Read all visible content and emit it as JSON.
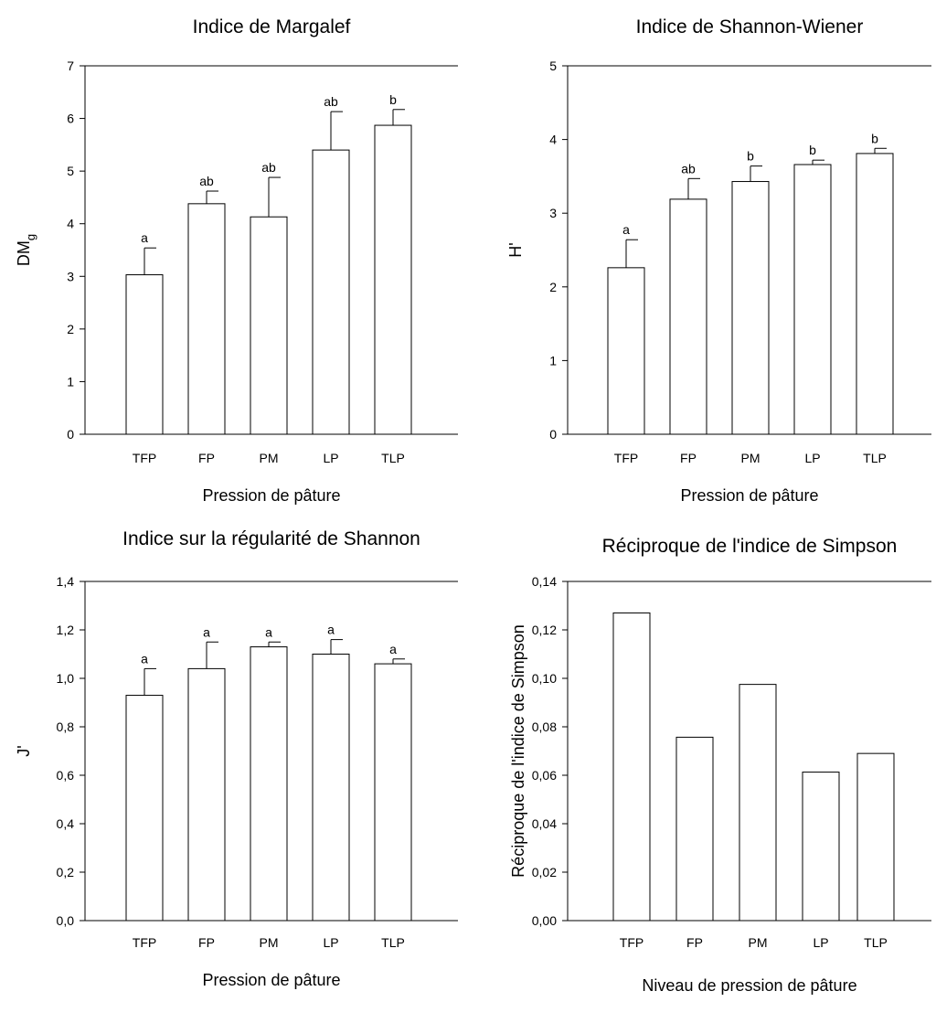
{
  "chart_data": [
    {
      "type": "bar",
      "title": "Indice de Margalef",
      "xlabel": "Pression de pâture",
      "ylabel_main": "DM",
      "ylabel_sub": "g",
      "categories": [
        "TFP",
        "FP",
        "PM",
        "LP",
        "TLP"
      ],
      "values": [
        3.03,
        4.38,
        4.13,
        5.4,
        5.87
      ],
      "errors": [
        0.51,
        0.24,
        0.75,
        0.73,
        0.3
      ],
      "letters": [
        "a",
        "ab",
        "ab",
        "ab",
        "b"
      ],
      "ylim": [
        0,
        7
      ],
      "yticks": [
        "0",
        "1",
        "2",
        "3",
        "4",
        "5",
        "6",
        "7"
      ]
    },
    {
      "type": "bar",
      "title": "Indice de Shannon-Wiener",
      "xlabel": "Pression de pâture",
      "ylabel": "H'",
      "categories": [
        "TFP",
        "FP",
        "PM",
        "LP",
        "TLP"
      ],
      "values": [
        2.26,
        3.19,
        3.43,
        3.66,
        3.81
      ],
      "errors": [
        0.38,
        0.28,
        0.21,
        0.06,
        0.07
      ],
      "letters": [
        "a",
        "ab",
        "b",
        "b",
        "b"
      ],
      "ylim": [
        0,
        5
      ],
      "yticks": [
        "0",
        "1",
        "2",
        "3",
        "4",
        "5"
      ]
    },
    {
      "type": "bar",
      "title": "Indice sur la régularité de Shannon",
      "xlabel": "Pression de pâture",
      "ylabel": "J'",
      "categories": [
        "TFP",
        "FP",
        "PM",
        "LP",
        "TLP"
      ],
      "values": [
        0.93,
        1.04,
        1.13,
        1.1,
        1.06
      ],
      "errors": [
        0.11,
        0.11,
        0.02,
        0.06,
        0.02
      ],
      "letters": [
        "a",
        "a",
        "a",
        "a",
        "a"
      ],
      "ylim": [
        0,
        1.4
      ],
      "yticks": [
        "0,0",
        "0,2",
        "0,4",
        "0,6",
        "0,8",
        "1,0",
        "1,2",
        "1,4"
      ]
    },
    {
      "type": "bar",
      "title": "Réciproque de l'indice de Simpson",
      "xlabel": "Niveau de pression de pâture",
      "ylabel": "Réciproque de l'indice de Simpson",
      "categories": [
        "TFP",
        "FP",
        "PM",
        "LP",
        "TLP"
      ],
      "values": [
        0.127,
        0.0757,
        0.0975,
        0.0613,
        0.069
      ],
      "ylim": [
        0,
        0.14
      ],
      "yticks": [
        "0,00",
        "0,02",
        "0,04",
        "0,06",
        "0,08",
        "0,10",
        "0,12",
        "0,14"
      ]
    }
  ]
}
